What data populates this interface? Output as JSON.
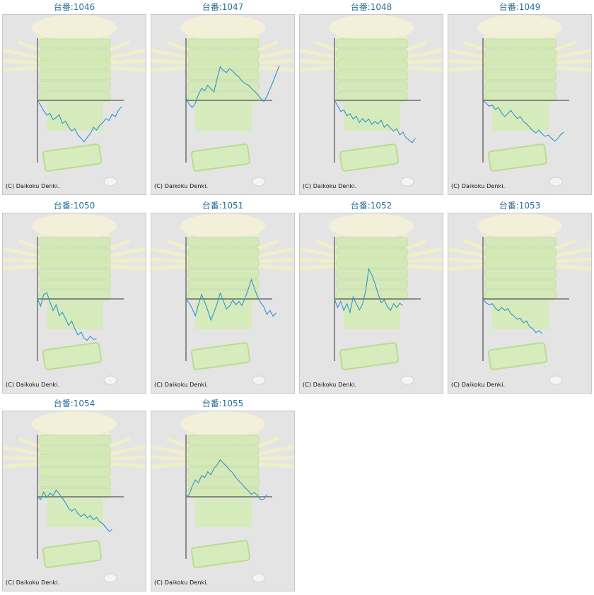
{
  "colors": {
    "title": "#2a6f97",
    "line": "#2f95c8",
    "axis": "#333333",
    "background": "#e4e4e4"
  },
  "chart_data": [
    {
      "type": "line",
      "title": "台番:1046",
      "credit": "(C) Daikoku Denki.",
      "ylim": [
        -10,
        10
      ],
      "y": [
        0.0,
        -1.0,
        -2.2,
        -3.1,
        -2.7,
        -4.0,
        -3.6,
        -3.0,
        -4.8,
        -4.3,
        -5.5,
        -6.4,
        -5.9,
        -7.2,
        -7.9,
        -8.6,
        -7.7,
        -6.9,
        -5.6,
        -6.2,
        -5.2,
        -4.6,
        -3.8,
        -4.2,
        -2.9,
        -3.4,
        -2.1,
        -1.3
      ]
    },
    {
      "type": "line",
      "title": "台番:1047",
      "credit": "(C) Daikoku Denki.",
      "ylim": [
        -10,
        10
      ],
      "y": [
        0.5,
        -0.8,
        -1.5,
        -0.6,
        1.2,
        2.5,
        2.0,
        3.1,
        2.4,
        1.8,
        4.5,
        7.0,
        6.2,
        5.8,
        6.6,
        6.1,
        5.4,
        4.9,
        4.0,
        3.5,
        3.2,
        2.5,
        1.9,
        1.2,
        0.4,
        -0.2,
        0.8,
        2.4,
        3.9,
        5.6,
        7.2
      ]
    },
    {
      "type": "line",
      "title": "台番:1048",
      "credit": "(C) Daikoku Denki.",
      "ylim": [
        -10,
        10
      ],
      "y": [
        0.0,
        -1.1,
        -2.3,
        -2.0,
        -3.2,
        -2.8,
        -3.9,
        -3.3,
        -4.6,
        -3.8,
        -4.5,
        -3.9,
        -5.0,
        -4.4,
        -4.9,
        -4.1,
        -5.6,
        -5.0,
        -5.8,
        -6.4,
        -5.9,
        -7.2,
        -6.6,
        -7.8,
        -8.3,
        -8.8,
        -7.9
      ]
    },
    {
      "type": "line",
      "title": "台番:1049",
      "credit": "(C) Daikoku Denki.",
      "ylim": [
        -10,
        10
      ],
      "y": [
        0.0,
        -0.6,
        -1.2,
        -1.0,
        -1.9,
        -1.5,
        -2.6,
        -3.4,
        -2.7,
        -2.1,
        -3.0,
        -3.8,
        -3.4,
        -4.4,
        -4.9,
        -5.6,
        -6.3,
        -6.8,
        -6.2,
        -7.0,
        -7.5,
        -7.2,
        -7.9,
        -8.5,
        -8.0,
        -7.1,
        -6.6
      ]
    },
    {
      "type": "line",
      "title": "台番:1050",
      "credit": "(C) Daikoku Denki.",
      "ylim": [
        -10,
        10
      ],
      "y": [
        0.0,
        -1.5,
        0.9,
        1.3,
        -0.6,
        -2.4,
        -1.2,
        -3.5,
        -2.8,
        -4.1,
        -5.5,
        -4.6,
        -6.2,
        -7.5,
        -6.9,
        -8.2,
        -8.6,
        -7.8,
        -8.4,
        -8.4
      ]
    },
    {
      "type": "line",
      "title": "台番:1051",
      "credit": "(C) Daikoku Denki.",
      "ylim": [
        -10,
        10
      ],
      "y": [
        0.0,
        -0.8,
        -2.0,
        -3.5,
        -1.2,
        0.9,
        -0.6,
        -2.4,
        -4.4,
        -2.8,
        -1.0,
        1.2,
        -0.4,
        -2.1,
        -1.5,
        -0.3,
        -1.2,
        -0.5,
        -1.4,
        0.2,
        2.0,
        4.0,
        2.2,
        0.4,
        -0.8,
        -1.6,
        -3.2,
        -2.4,
        -3.6,
        -2.9
      ]
    },
    {
      "type": "line",
      "title": "台番:1052",
      "credit": "(C) Daikoku Denki.",
      "ylim": [
        -10,
        10
      ],
      "y": [
        0.0,
        -1.8,
        -0.5,
        -2.4,
        -1.0,
        -2.8,
        0.4,
        -1.0,
        -2.3,
        -1.1,
        1.6,
        6.2,
        5.0,
        3.2,
        1.1,
        -0.8,
        -0.2,
        -1.6,
        -2.4,
        -1.0,
        -1.8,
        -0.9,
        -1.4
      ]
    },
    {
      "type": "line",
      "title": "台番:1053",
      "credit": "(C) Daikoku Denki.",
      "ylim": [
        -10,
        10
      ],
      "y": [
        0.0,
        -0.8,
        -1.2,
        -1.0,
        -1.9,
        -2.5,
        -1.8,
        -2.4,
        -2.0,
        -3.1,
        -3.6,
        -4.2,
        -4.0,
        -5.0,
        -4.6,
        -5.8,
        -6.2,
        -7.0,
        -6.6,
        -7.2
      ]
    },
    {
      "type": "line",
      "title": "台番:1054",
      "credit": "(C) Daikoku Denki.",
      "ylim": [
        -10,
        10
      ],
      "y": [
        0.0,
        -0.6,
        1.0,
        -0.2,
        0.8,
        0.2,
        1.4,
        0.6,
        -0.3,
        -1.2,
        -2.4,
        -3.0,
        -2.5,
        -3.5,
        -4.1,
        -3.6,
        -4.4,
        -3.9,
        -4.8,
        -4.3,
        -5.2,
        -5.6,
        -6.4,
        -7.2,
        -6.8
      ]
    },
    {
      "type": "line",
      "title": "台番:1055",
      "credit": "(C) Daikoku Denki.",
      "ylim": [
        -10,
        10
      ],
      "y": [
        0.0,
        0.4,
        2.2,
        3.5,
        2.9,
        4.4,
        4.0,
        5.2,
        4.6,
        5.9,
        6.6,
        7.7,
        7.0,
        6.4,
        5.6,
        5.0,
        4.0,
        3.3,
        2.6,
        1.9,
        1.3,
        0.5,
        0.9,
        0.3,
        -0.6,
        -0.5,
        0.5
      ]
    }
  ]
}
